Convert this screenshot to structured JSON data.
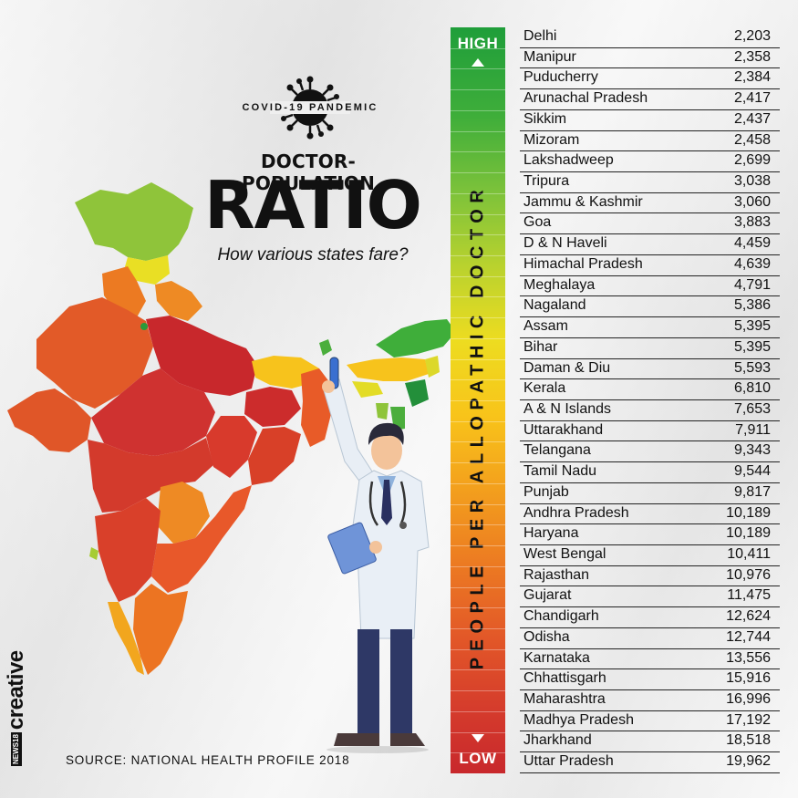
{
  "header": {
    "tag": "COVID-19 PANDEMIC",
    "title_line1": "DOCTOR-POPULATION",
    "title_line2": "RATIO",
    "subtitle": "How various states fare?"
  },
  "source": "SOURCE: NATIONAL HEALTH PROFILE 2018",
  "brand": {
    "box": "NEWS18",
    "word": "creative"
  },
  "scale": {
    "top_label": "HIGH",
    "bottom_label": "LOW",
    "axis_label": "PEOPLE PER ALLOPATHIC DOCTOR",
    "colors": [
      "#1f9e3a",
      "#7cc23a",
      "#eddc20",
      "#f39f1d",
      "#e25728",
      "#c8282c"
    ]
  },
  "chart_data": {
    "type": "table",
    "ylabel": "PEOPLE PER ALLOPATHIC DOCTOR",
    "rows": [
      {
        "state": "Delhi",
        "value": "2,203"
      },
      {
        "state": "Manipur",
        "value": "2,358"
      },
      {
        "state": "Puducherry",
        "value": "2,384"
      },
      {
        "state": "Arunachal Pradesh",
        "value": "2,417"
      },
      {
        "state": "Sikkim",
        "value": "2,437"
      },
      {
        "state": "Mizoram",
        "value": "2,458"
      },
      {
        "state": "Lakshadweep",
        "value": "2,699"
      },
      {
        "state": "Tripura",
        "value": "3,038"
      },
      {
        "state": "Jammu & Kashmir",
        "value": "3,060"
      },
      {
        "state": "Goa",
        "value": "3,883"
      },
      {
        "state": "D & N Haveli",
        "value": "4,459"
      },
      {
        "state": "Himachal Pradesh",
        "value": "4,639"
      },
      {
        "state": "Meghalaya",
        "value": "4,791"
      },
      {
        "state": "Nagaland",
        "value": "5,386"
      },
      {
        "state": "Assam",
        "value": "5,395"
      },
      {
        "state": "Bihar",
        "value": "5,395"
      },
      {
        "state": "Daman & Diu",
        "value": "5,593"
      },
      {
        "state": "Kerala",
        "value": "6,810"
      },
      {
        "state": "A & N Islands",
        "value": "7,653"
      },
      {
        "state": "Uttarakhand",
        "value": "7,911"
      },
      {
        "state": "Telangana",
        "value": "9,343"
      },
      {
        "state": "Tamil Nadu",
        "value": "9,544"
      },
      {
        "state": "Punjab",
        "value": "9,817"
      },
      {
        "state": "Andhra Pradesh",
        "value": "10,189"
      },
      {
        "state": "Haryana",
        "value": "10,189"
      },
      {
        "state": "West Bengal",
        "value": "10,411"
      },
      {
        "state": "Rajasthan",
        "value": "10,976"
      },
      {
        "state": "Gujarat",
        "value": "11,475"
      },
      {
        "state": "Chandigarh",
        "value": "12,624"
      },
      {
        "state": "Odisha",
        "value": "12,744"
      },
      {
        "state": "Karnataka",
        "value": "13,556"
      },
      {
        "state": "Chhattisgarh",
        "value": "15,916"
      },
      {
        "state": "Maharashtra",
        "value": "16,996"
      },
      {
        "state": "Madhya Pradesh",
        "value": "17,192"
      },
      {
        "state": "Jharkhand",
        "value": "18,518"
      },
      {
        "state": "Uttar Pradesh",
        "value": "19,962"
      }
    ]
  }
}
